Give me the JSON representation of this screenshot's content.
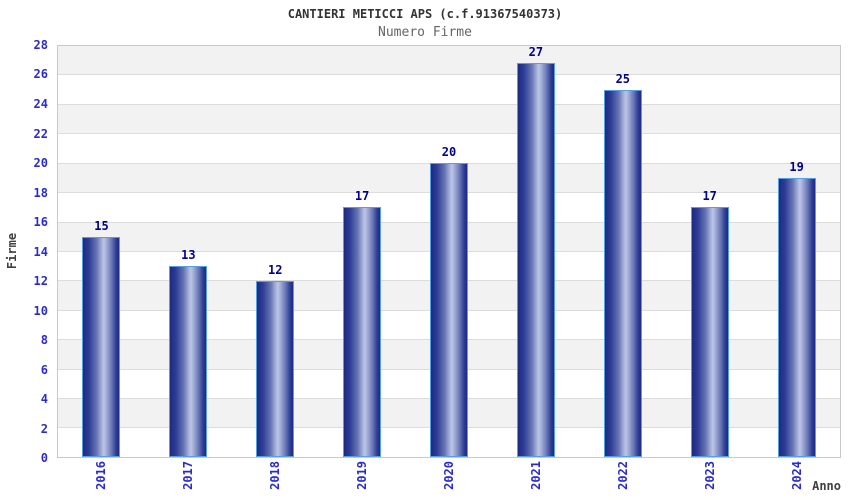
{
  "chart_data": {
    "type": "bar",
    "title": "CANTIERI METICCI APS (c.f.91367540373)",
    "subtitle": "Numero Firme",
    "xlabel": "Anno",
    "ylabel": "Firme",
    "categories": [
      "2016",
      "2017",
      "2018",
      "2019",
      "2020",
      "2021",
      "2022",
      "2023",
      "2024"
    ],
    "values": [
      15,
      13,
      12,
      17,
      20,
      27,
      25,
      17,
      19
    ],
    "ylim": [
      0,
      28
    ],
    "ytick_step": 2,
    "grid": "horizontal",
    "bands": "alternating",
    "legend": "none",
    "colors": {
      "bar_dark": "#1e2a82",
      "bar_light": "#bcc5e6",
      "bar_border": "#55a0e0",
      "value_label": "#00008b",
      "tick_label": "#2b2bcc",
      "band_gray": "#f2f2f2",
      "gridline": "#dcdcdc",
      "title": "#333333",
      "subtitle": "#666666",
      "axis_title": "#404040",
      "background": "#ffffff"
    }
  }
}
